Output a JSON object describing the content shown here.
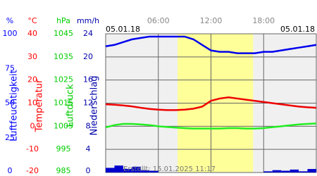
{
  "chart_data": {
    "type": "multi-axis-line",
    "date_left": "05.01.18",
    "date_right": "05.01.18",
    "credit": "Erstellt: 15.01.2025 11:17",
    "x": [
      0,
      1,
      2,
      3,
      4,
      5,
      6,
      7,
      8,
      9,
      10,
      11,
      12,
      13,
      14,
      15,
      16,
      17,
      18,
      19,
      20,
      21,
      22,
      23,
      24
    ],
    "xlim": [
      0,
      24
    ],
    "xticks": [
      {
        "value": 6,
        "label": "06:00"
      },
      {
        "value": 12,
        "label": "12:00"
      },
      {
        "value": 18,
        "label": "18:00"
      }
    ],
    "daylight": [
      8.2,
      16.8
    ],
    "axes": [
      {
        "unit": "%",
        "label": "Luftfeuchtigkeit",
        "color": "#0000ff",
        "ylim": [
          0,
          100
        ],
        "yticks": [
          0,
          25,
          50,
          75,
          100
        ]
      },
      {
        "unit": "°C",
        "label": "Temperatur",
        "color": "#ff0000",
        "ylim": [
          -20,
          40
        ],
        "yticks": [
          -20,
          -10,
          0,
          10,
          20,
          30,
          40
        ]
      },
      {
        "unit": "hPa",
        "label": "Luftdruck",
        "color": "#00cc00",
        "ylim": [
          985,
          1045
        ],
        "yticks": [
          985,
          995,
          1005,
          1015,
          1025,
          1035,
          1045
        ]
      },
      {
        "unit": "mm/h",
        "label": "Niederschlag",
        "color": "#0000aa",
        "ylim": [
          0,
          24
        ],
        "yticks": [
          0,
          4,
          8,
          12,
          16,
          20,
          24
        ],
        "grid": true
      }
    ],
    "series": [
      {
        "name": "Luftfeuchtigkeit",
        "axis": 0,
        "kind": "line",
        "color": "#0000ee",
        "values": [
          91,
          92,
          94,
          96,
          97,
          98,
          98,
          98,
          98,
          98,
          96,
          92,
          88,
          87,
          87,
          86,
          86,
          86,
          87,
          87,
          88,
          89,
          90,
          91,
          92
        ]
      },
      {
        "name": "Temperatur",
        "axis": 1,
        "kind": "line",
        "color": "#ee0000",
        "values": [
          9.5,
          9.3,
          9.0,
          8.6,
          8.0,
          7.5,
          7.2,
          7.0,
          7.0,
          7.2,
          7.6,
          8.5,
          11,
          12,
          12.5,
          12,
          11.5,
          11,
          10.5,
          10,
          9.5,
          9,
          8.5,
          8.2,
          8.0
        ]
      },
      {
        "name": "Luftdruck",
        "axis": 2,
        "kind": "line",
        "color": "#22ee22",
        "values": [
          1004.5,
          1005.5,
          1006,
          1006,
          1005.8,
          1005.5,
          1005,
          1004.7,
          1004.4,
          1004.2,
          1004,
          1004,
          1004,
          1004,
          1004.2,
          1004.2,
          1004,
          1004,
          1004.2,
          1004.6,
          1005,
          1005.4,
          1005.8,
          1006,
          1006.2
        ]
      },
      {
        "name": "Niederschlag",
        "axis": 3,
        "kind": "bar",
        "color": "#0000cc",
        "values": [
          0.8,
          1.2,
          0.6,
          1.0,
          0.4,
          0.3,
          0,
          0,
          0,
          0,
          0,
          0,
          0,
          0,
          0,
          0,
          0,
          0,
          0.2,
          0.4,
          0.3,
          0.5,
          0.2,
          0.4,
          0.6
        ]
      }
    ]
  }
}
